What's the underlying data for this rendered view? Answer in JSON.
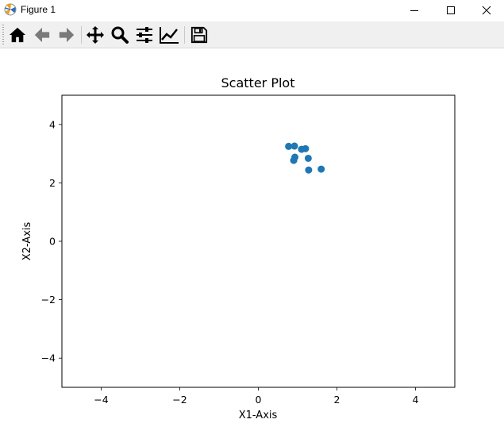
{
  "window": {
    "title": "Figure 1",
    "app_icon": "matplotlib-icon",
    "controls": [
      "minimize-icon",
      "maximize-icon",
      "close-icon"
    ]
  },
  "toolbar": {
    "buttons": [
      {
        "icon": "home-icon",
        "tooltip": "Reset original view"
      },
      {
        "icon": "arrow-left-icon",
        "tooltip": "Back to previous view"
      },
      {
        "icon": "arrow-right-icon",
        "tooltip": "Forward to next view"
      },
      {
        "icon": "move-icon",
        "tooltip": "Pan axes"
      },
      {
        "icon": "zoom-icon",
        "tooltip": "Zoom to rectangle"
      },
      {
        "icon": "sliders-icon",
        "tooltip": "Configure subplots"
      },
      {
        "icon": "chart-line-icon",
        "tooltip": "Edit axis, curve and image parameters"
      },
      {
        "icon": "save-icon",
        "tooltip": "Save the figure"
      }
    ]
  },
  "chart_data": {
    "type": "scatter",
    "title": "Scatter Plot",
    "xlabel": "X1-Axis",
    "ylabel": "X2-Axis",
    "xlim": [
      -5,
      5
    ],
    "ylim": [
      -5,
      5
    ],
    "xticks": [
      -4,
      -2,
      0,
      2,
      4
    ],
    "yticks": [
      -4,
      -2,
      0,
      2,
      4
    ],
    "grid": false,
    "color": "#1f77b4",
    "points": [
      {
        "x": 0.77,
        "y": 3.25
      },
      {
        "x": 0.92,
        "y": 3.26
      },
      {
        "x": 1.1,
        "y": 3.15
      },
      {
        "x": 1.2,
        "y": 3.17
      },
      {
        "x": 0.93,
        "y": 2.88
      },
      {
        "x": 0.9,
        "y": 2.77
      },
      {
        "x": 1.27,
        "y": 2.84
      },
      {
        "x": 1.28,
        "y": 2.44
      },
      {
        "x": 1.6,
        "y": 2.47
      }
    ]
  }
}
